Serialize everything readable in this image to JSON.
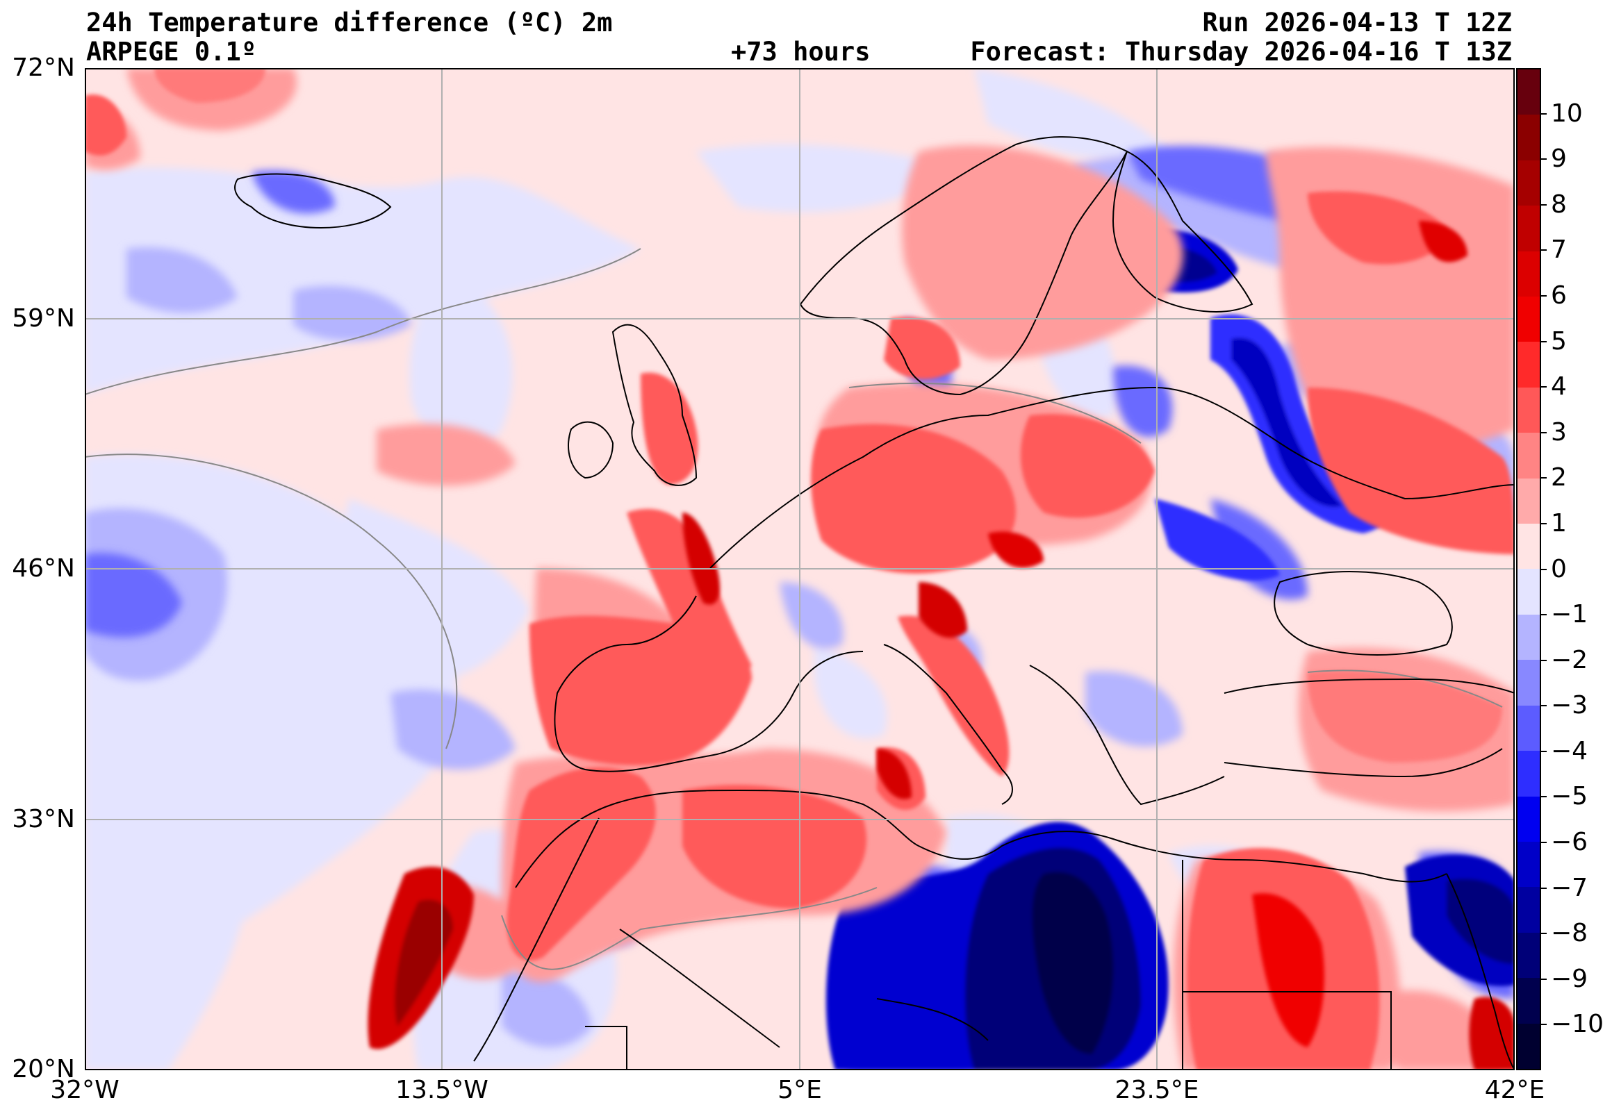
{
  "header": {
    "title": "24h Temperature difference (ºC) 2m",
    "model": "ARPEGE 0.1º",
    "lead_time": "+73 hours",
    "run": "Run 2026-04-13 T 12Z",
    "forecast": "Forecast: Thursday 2026-04-16 T 13Z"
  },
  "axes": {
    "latitudes": [
      "72°N",
      "59°N",
      "46°N",
      "33°N",
      "20°N"
    ],
    "longitudes": [
      "32°W",
      "13.5°W",
      "5°E",
      "23.5°E",
      "42°E"
    ],
    "lat_range_deg": [
      20,
      72
    ],
    "lon_range_deg": [
      -32,
      42
    ]
  },
  "colorbar": {
    "labels": [
      "10",
      "9",
      "8",
      "7",
      "6",
      "5",
      "4",
      "3",
      "2",
      "1",
      "0",
      "−1",
      "−2",
      "−3",
      "−4",
      "−5",
      "−6",
      "−7",
      "−8",
      "−9",
      "−10"
    ],
    "value_range": [
      -11,
      11
    ],
    "colors": [
      "#67000d",
      "#8b0000",
      "#a50000",
      "#c00000",
      "#dc0000",
      "#f00000",
      "#ff2a2a",
      "#ff5858",
      "#ff8484",
      "#ffaaaa",
      "#ffe4e4",
      "#e4e4ff",
      "#b4b4ff",
      "#8888ff",
      "#5c5cff",
      "#2e2eff",
      "#0000f0",
      "#0000c8",
      "#0000a0",
      "#000078",
      "#00004e",
      "#000030"
    ]
  },
  "legend_colors": {
    "warm_strong": "#d40000",
    "warm": "#ff5a5a",
    "warm_light": "#ff9c9c",
    "neutral_warm": "#ffe4e4",
    "neutral_cool": "#e4e4ff",
    "cool_light": "#b4b4ff",
    "cool": "#6a6aff",
    "cool_strong": "#0000c0",
    "cool_extreme": "#000048"
  }
}
